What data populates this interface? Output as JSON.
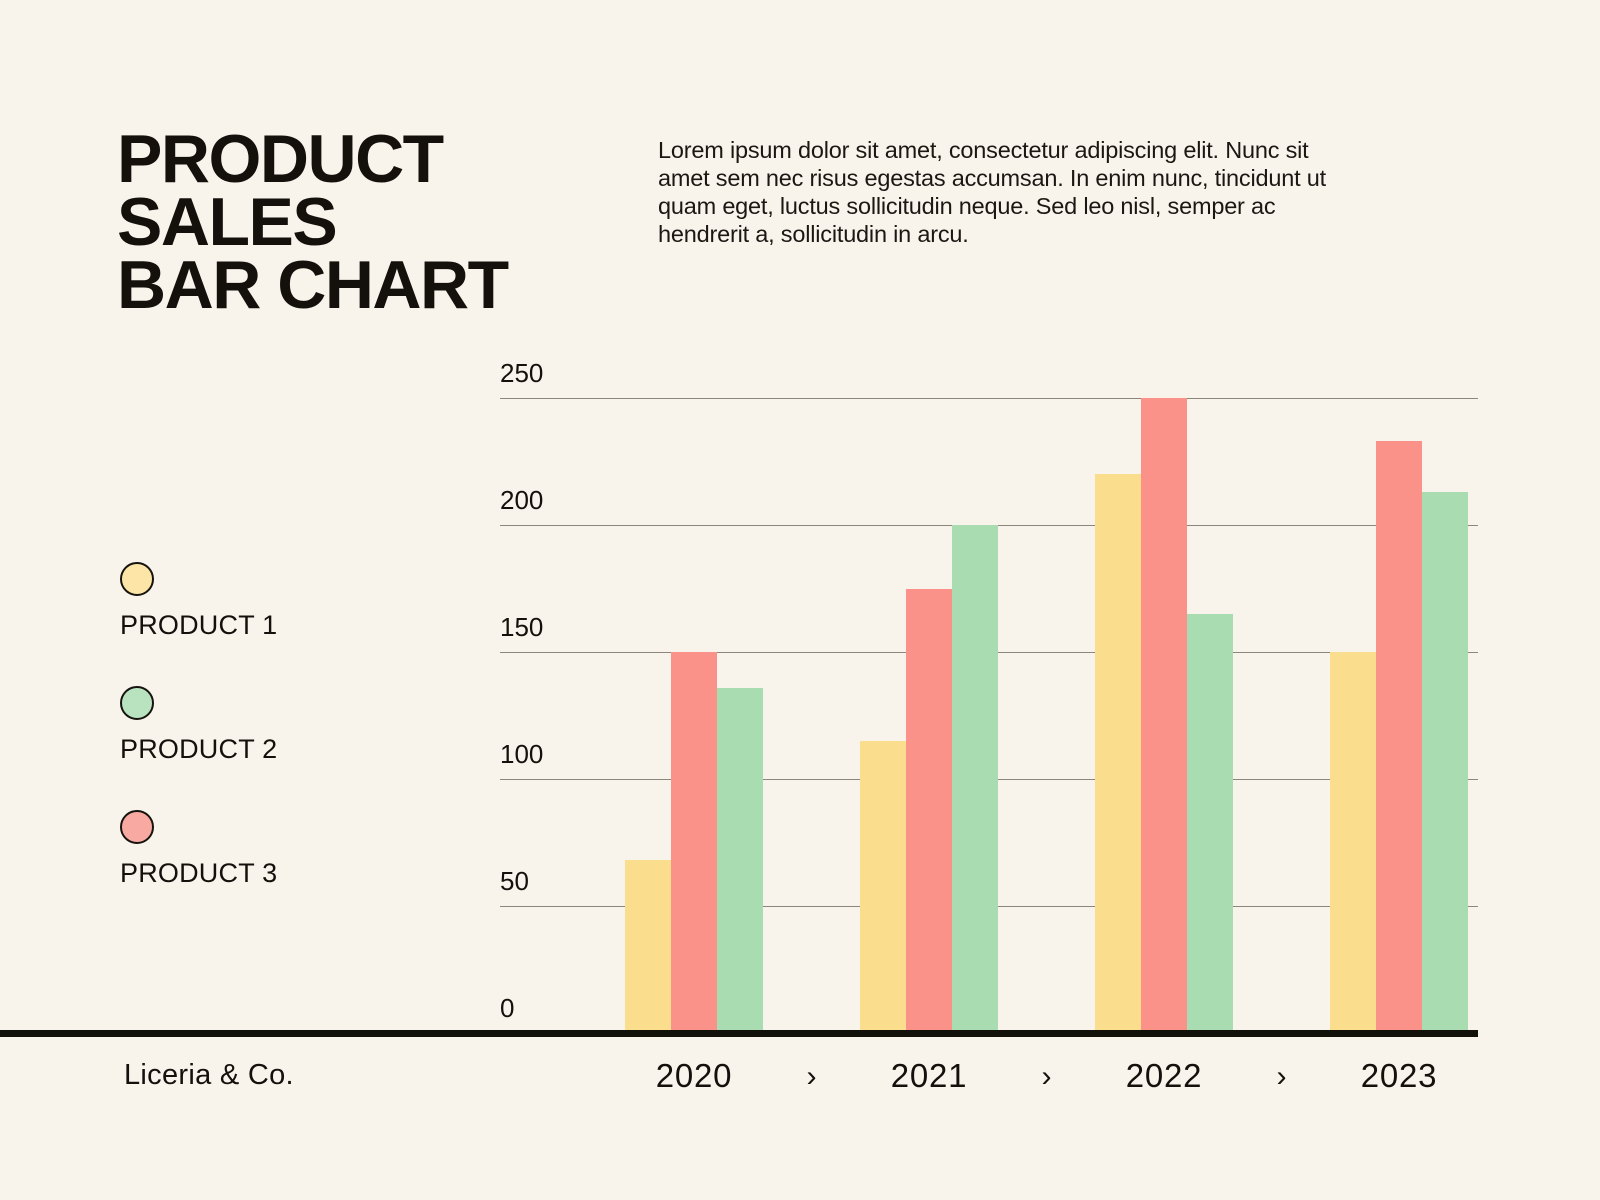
{
  "page": {
    "background": "#F8F4EC",
    "text_color": "#17130E"
  },
  "title": {
    "lines": [
      "PRODUCT",
      "SALES",
      "BAR CHART"
    ]
  },
  "intro": {
    "lines": [
      "Lorem ipsum dolor sit amet, consectetur adipiscing elit. Nunc sit",
      "amet sem nec risus egestas accumsan. In enim nunc, tincidunt ut",
      "quam eget, luctus sollicitudin neque. Sed leo nisl, semper ac",
      "hendrerit a, sollicitudin in arcu."
    ]
  },
  "legend": {
    "items": [
      {
        "label": "PRODUCT 1",
        "swatch_color": "#FCE5A6",
        "series_key": "product1"
      },
      {
        "label": "PRODUCT 2",
        "swatch_color": "#B9E3BF",
        "series_key": "product2"
      },
      {
        "label": "PRODUCT 3",
        "swatch_color": "#F8A9A1",
        "series_key": "product3"
      }
    ]
  },
  "footer": {
    "brand": "Liceria & Co.",
    "separator": "›"
  },
  "chart_data": {
    "type": "bar",
    "title": "PRODUCT SALES BAR CHART",
    "categories": [
      "2020",
      "2021",
      "2022",
      "2023"
    ],
    "series": [
      {
        "name": "PRODUCT 1",
        "key": "product1",
        "color": "#FBDE8D",
        "values": [
          68,
          115,
          220,
          150
        ]
      },
      {
        "name": "PRODUCT 3",
        "key": "product3",
        "color": "#FB9289",
        "values": [
          150,
          175,
          250,
          233
        ]
      },
      {
        "name": "PRODUCT 2",
        "key": "product2",
        "color": "#A9DCB0",
        "values": [
          136,
          200,
          165,
          213
        ]
      }
    ],
    "series_visual_order": [
      "PRODUCT 1",
      "PRODUCT 3",
      "PRODUCT 2"
    ],
    "yticks": [
      0,
      50,
      100,
      150,
      200,
      250
    ],
    "ylim": [
      0,
      250
    ],
    "grid": true,
    "gridline_color": "#8C867B",
    "axis_line_color": "#111009",
    "legend_position": "left",
    "xlabel": "",
    "ylabel": ""
  }
}
